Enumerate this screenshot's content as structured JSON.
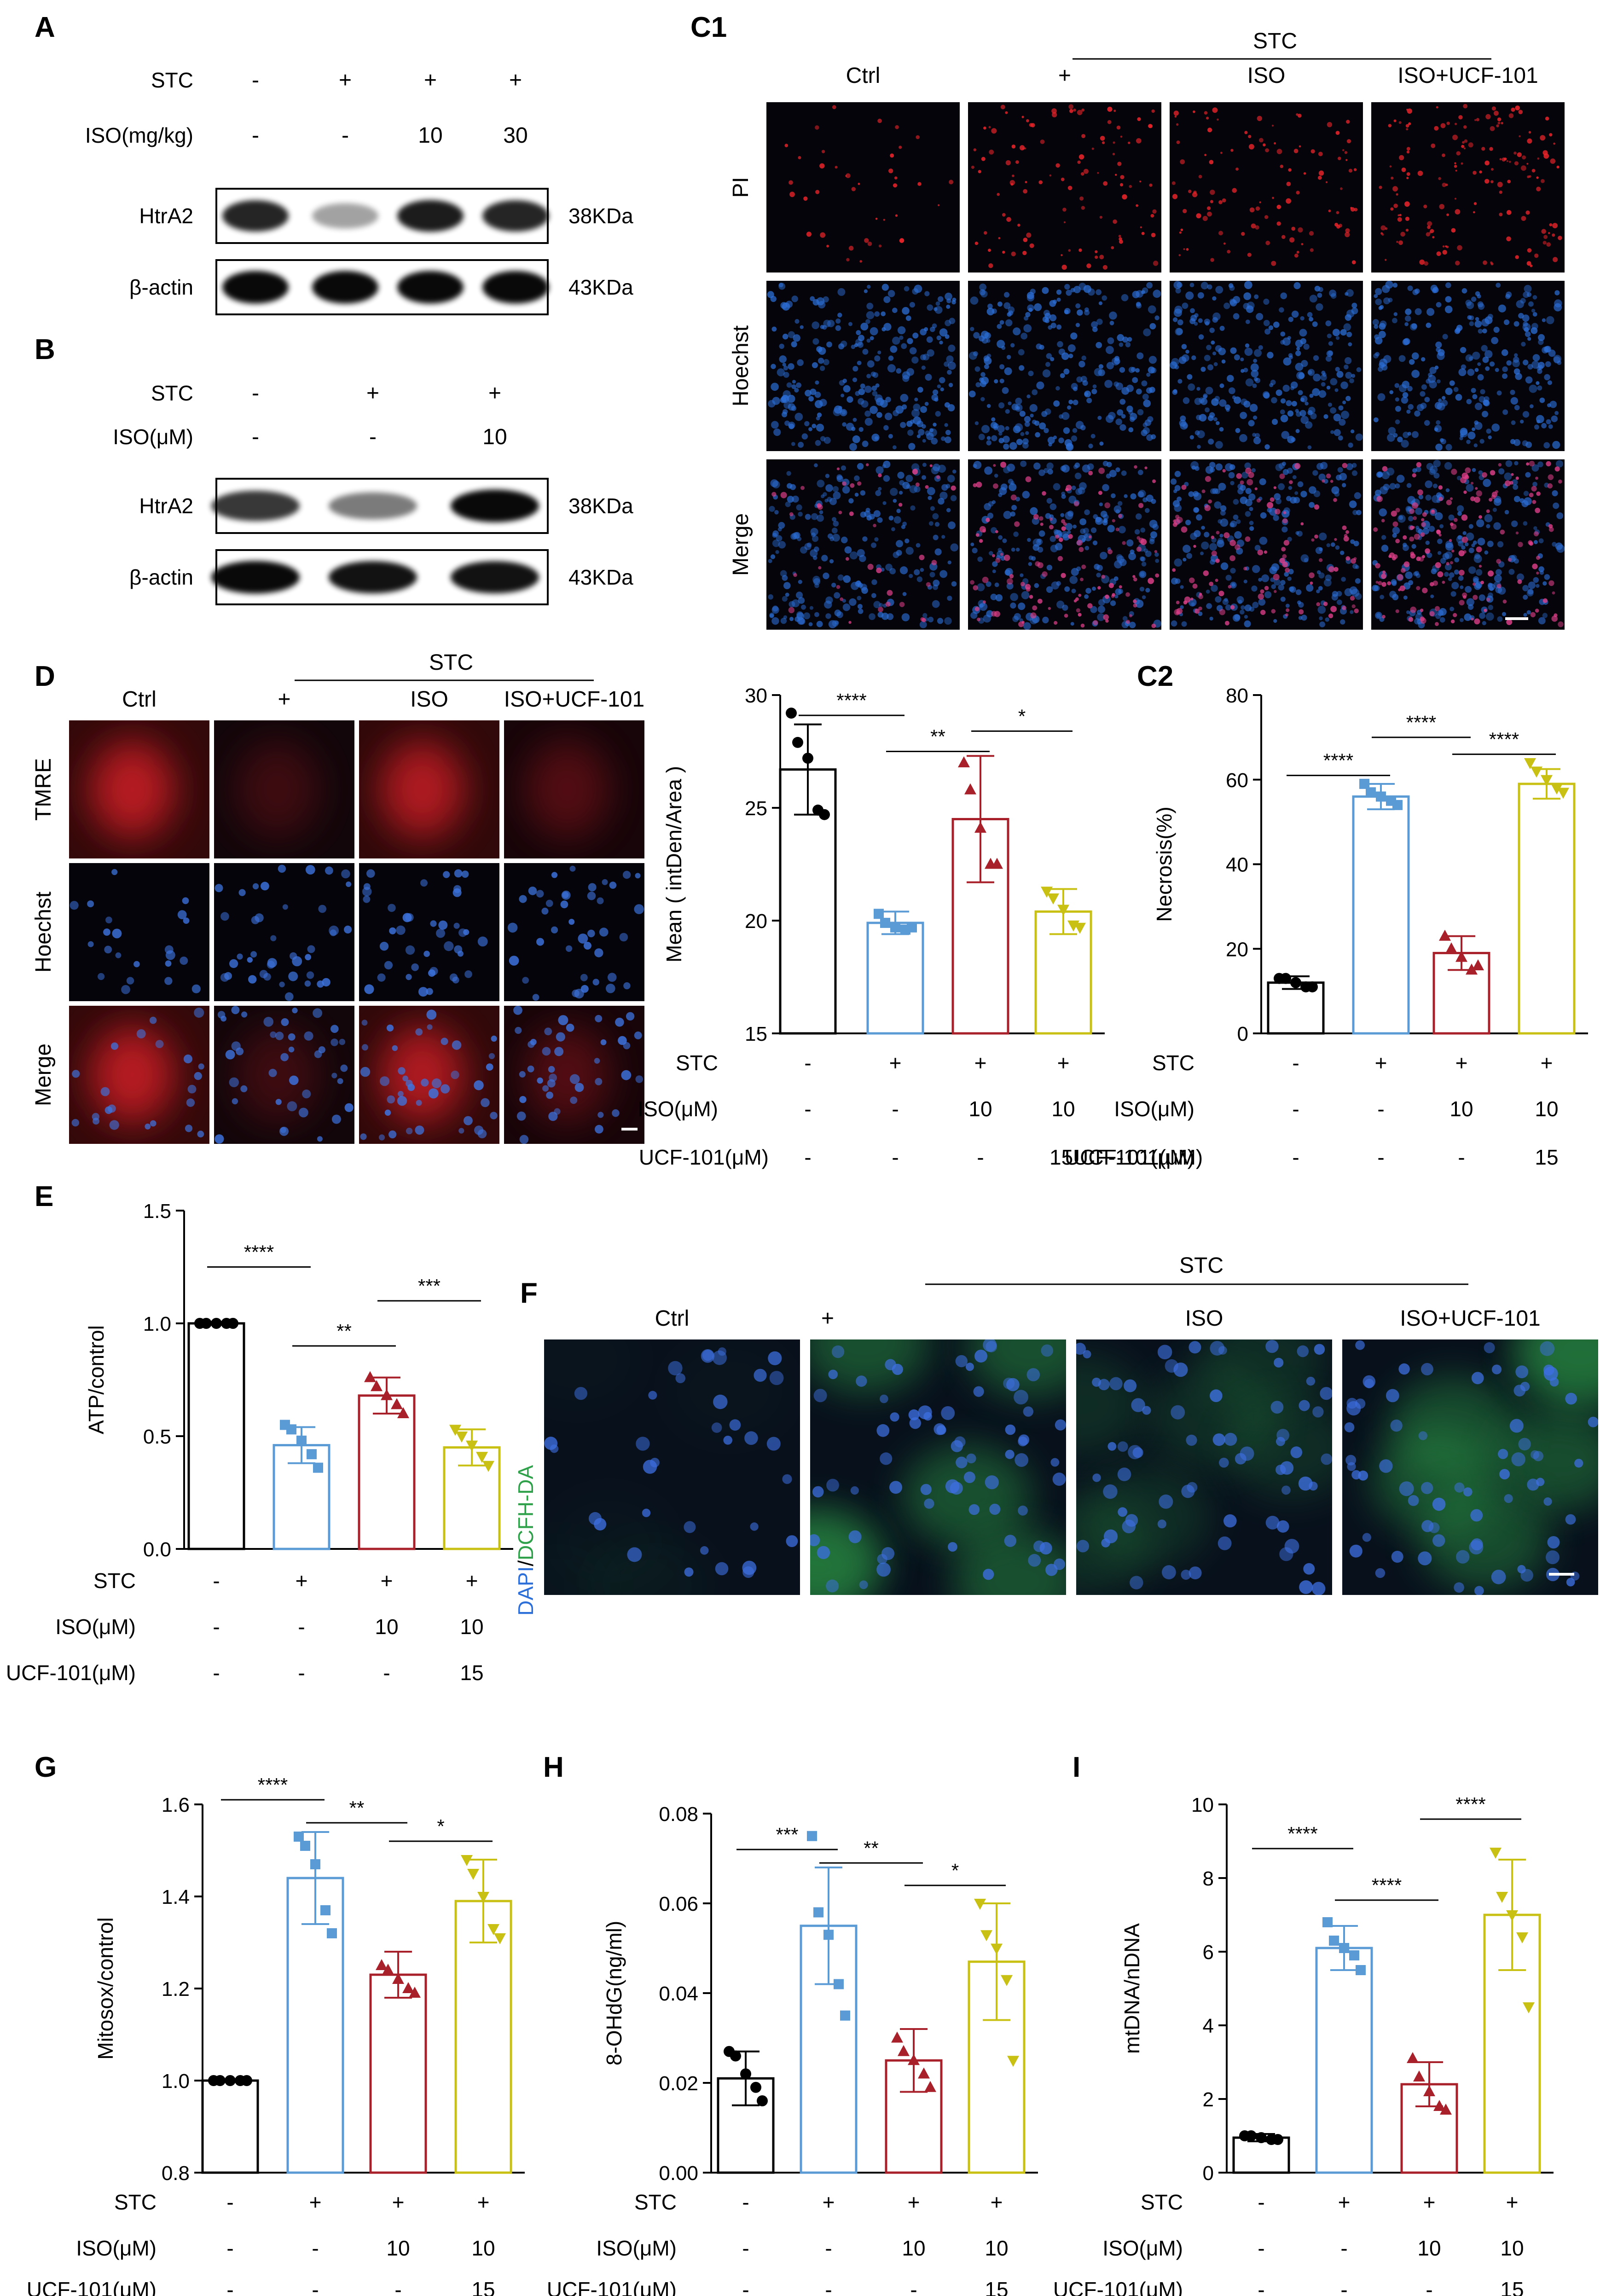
{
  "colors": {
    "ctrl": "#000000",
    "stc": "#5b9bd5",
    "iso": "#a8202a",
    "ucf": "#c8c012",
    "pi": "#e8242a",
    "hoechst": "#2c6fd8",
    "dcf": "#2fa14a"
  },
  "A": {
    "label": "A",
    "rows": [
      {
        "name": "STC",
        "vals": [
          "-",
          "+",
          "+",
          "+"
        ]
      },
      {
        "name": "ISO(mg/kg)",
        "vals": [
          "-",
          "-",
          "10",
          "30"
        ]
      }
    ],
    "blots": [
      {
        "name": "HtrA2",
        "kda": "38KDa",
        "levels": [
          0.8,
          0.15,
          0.85,
          0.8
        ]
      },
      {
        "name": "β-actin",
        "kda": "43KDa",
        "levels": [
          0.95,
          0.95,
          0.95,
          0.95
        ]
      }
    ]
  },
  "B": {
    "label": "B",
    "rows": [
      {
        "name": "STC",
        "vals": [
          "-",
          "+",
          "+"
        ]
      },
      {
        "name": "ISO(μM)",
        "vals": [
          "-",
          "-",
          "10"
        ]
      }
    ],
    "blots": [
      {
        "name": "HtrA2",
        "kda": "38KDa",
        "levels": [
          0.7,
          0.35,
          0.95
        ]
      },
      {
        "name": "β-actin",
        "kda": "43KDa",
        "levels": [
          0.95,
          0.9,
          0.9
        ]
      }
    ]
  },
  "C1": {
    "label": "C1",
    "group": "STC",
    "cols": [
      "Ctrl",
      "+",
      "ISO",
      "ISO+UCF-101"
    ],
    "rows": [
      "PI",
      "Hoechst",
      "Merge"
    ]
  },
  "D": {
    "label": "D",
    "group": "STC",
    "cols": [
      "Ctrl",
      "+",
      "ISO",
      "ISO+UCF-101"
    ],
    "rows": [
      "TMRE",
      "Hoechst",
      "Merge"
    ]
  },
  "F": {
    "label": "F",
    "group": "STC",
    "cols": [
      "Ctrl",
      "+",
      "ISO",
      "ISO+UCF-101"
    ],
    "ylabel_a": "DAPI",
    "ylabel_sep": "/",
    "ylabel_b": "DCFH-DA"
  },
  "conds": {
    "labels": [
      "STC",
      "ISO(μM)",
      "UCF-101(μM)"
    ],
    "vals": [
      [
        "-",
        "+",
        "+",
        "+"
      ],
      [
        "-",
        "-",
        "10",
        "10"
      ],
      [
        "-",
        "-",
        "-",
        "15"
      ]
    ]
  },
  "chart_data": [
    {
      "id": "Dchart",
      "type": "bar",
      "ylabel": "Mean ( intDen/Area )",
      "ylim": [
        15,
        30
      ],
      "yticks": [
        "15",
        "20",
        "25",
        "30"
      ],
      "categories": [
        "Ctrl",
        "STC",
        "STC+ISO",
        "STC+ISO+UCF-101"
      ],
      "values": [
        26.7,
        19.9,
        24.5,
        20.4
      ],
      "errors": [
        2.0,
        0.5,
        2.8,
        1.0
      ],
      "points": [
        [
          29.2,
          27.9,
          27.2,
          24.9,
          24.7
        ],
        [
          20.3,
          19.9,
          19.7,
          19.6,
          19.7
        ],
        [
          27.0,
          25.8,
          24.1,
          22.5,
          22.5
        ],
        [
          21.3,
          21.0,
          20.5,
          19.8,
          19.7
        ]
      ],
      "sig": [
        {
          "a": 0,
          "b": 1,
          "label": "****",
          "y": 29.1
        },
        {
          "a": 1,
          "b": 2,
          "label": "**",
          "y": 27.5
        },
        {
          "a": 2,
          "b": 3,
          "label": "*",
          "y": 28.4
        }
      ]
    },
    {
      "id": "C2",
      "type": "bar",
      "ylabel": "Necrosis(%)",
      "ylim": [
        0,
        80
      ],
      "yticks": [
        "0",
        "20",
        "40",
        "60",
        "80"
      ],
      "categories": [
        "Ctrl",
        "STC",
        "STC+ISO",
        "STC+ISO+UCF-101"
      ],
      "values": [
        12,
        56,
        19,
        59
      ],
      "errors": [
        1.5,
        3.0,
        4.0,
        3.5
      ],
      "points": [
        [
          13,
          13,
          12,
          11,
          11
        ],
        [
          59,
          57,
          56,
          55,
          54
        ],
        [
          23,
          20,
          18,
          15,
          16
        ],
        [
          64,
          62,
          60,
          58,
          57
        ]
      ],
      "sig": [
        {
          "a": 0,
          "b": 1,
          "label": "****",
          "y": 61
        },
        {
          "a": 1,
          "b": 2,
          "label": "****",
          "y": 70
        },
        {
          "a": 2,
          "b": 3,
          "label": "****",
          "y": 66
        }
      ]
    },
    {
      "id": "E",
      "type": "bar",
      "ylabel": "ATP/control",
      "ylim": [
        0,
        1.5
      ],
      "yticks": [
        "0.0",
        "0.5",
        "1.0",
        "1.5"
      ],
      "categories": [
        "Ctrl",
        "STC",
        "STC+ISO",
        "STC+ISO+UCF-101"
      ],
      "values": [
        1.0,
        0.46,
        0.68,
        0.45
      ],
      "errors": [
        0,
        0.08,
        0.08,
        0.08
      ],
      "points": [
        [
          1.0,
          1.0,
          1.0,
          1.0,
          1.0
        ],
        [
          0.55,
          0.53,
          0.48,
          0.42,
          0.36
        ],
        [
          0.76,
          0.72,
          0.68,
          0.64,
          0.6
        ],
        [
          0.53,
          0.5,
          0.46,
          0.41,
          0.37
        ]
      ],
      "sig": [
        {
          "a": 0,
          "b": 1,
          "label": "****",
          "y": 1.25
        },
        {
          "a": 1,
          "b": 2,
          "label": "**",
          "y": 0.9
        },
        {
          "a": 2,
          "b": 3,
          "label": "***",
          "y": 1.1
        }
      ]
    },
    {
      "id": "G",
      "type": "bar",
      "ylabel": "Mitosox/control",
      "ylim": [
        0.8,
        1.6
      ],
      "yticks": [
        "0.8",
        "1.0",
        "1.2",
        "1.4",
        "1.6"
      ],
      "categories": [
        "Ctrl",
        "STC",
        "STC+ISO",
        "STC+ISO+UCF-101"
      ],
      "values": [
        1.0,
        1.44,
        1.23,
        1.39
      ],
      "errors": [
        0,
        0.1,
        0.05,
        0.09
      ],
      "points": [
        [
          1.0,
          1.0,
          1.0,
          1.0,
          1.0
        ],
        [
          1.53,
          1.51,
          1.47,
          1.37,
          1.32
        ],
        [
          1.25,
          1.24,
          1.22,
          1.2,
          1.19
        ],
        [
          1.48,
          1.45,
          1.4,
          1.33,
          1.31
        ]
      ],
      "sig": [
        {
          "a": 0,
          "b": 1,
          "label": "****",
          "y": 1.61
        },
        {
          "a": 1,
          "b": 2,
          "label": "**",
          "y": 1.56
        },
        {
          "a": 2,
          "b": 3,
          "label": "*",
          "y": 1.52
        }
      ]
    },
    {
      "id": "H",
      "type": "bar",
      "ylabel": "8-OHdG(ng/ml)",
      "ylim": [
        0,
        0.08
      ],
      "yticks": [
        "0.00",
        "0.02",
        "0.04",
        "0.06",
        "0.08"
      ],
      "categories": [
        "Ctrl",
        "STC",
        "STC+ISO",
        "STC+ISO+UCF-101"
      ],
      "values": [
        0.021,
        0.055,
        0.025,
        0.047
      ],
      "errors": [
        0.006,
        0.013,
        0.007,
        0.013
      ],
      "points": [
        [
          0.027,
          0.026,
          0.022,
          0.019,
          0.016
        ],
        [
          0.075,
          0.058,
          0.053,
          0.042,
          0.035
        ],
        [
          0.03,
          0.027,
          0.025,
          0.022,
          0.019
        ],
        [
          0.06,
          0.053,
          0.05,
          0.043,
          0.025
        ]
      ],
      "sig": [
        {
          "a": 0,
          "b": 1,
          "label": "***",
          "y": 0.072
        },
        {
          "a": 1,
          "b": 2,
          "label": "**",
          "y": 0.069
        },
        {
          "a": 2,
          "b": 3,
          "label": "*",
          "y": 0.064
        }
      ]
    },
    {
      "id": "I",
      "type": "bar",
      "ylabel": "mtDNA/nDNA",
      "ylim": [
        0,
        10
      ],
      "yticks": [
        "0",
        "2",
        "4",
        "6",
        "8",
        "10"
      ],
      "categories": [
        "Ctrl",
        "STC",
        "STC+ISO",
        "STC+ISO+UCF-101"
      ],
      "values": [
        0.95,
        6.1,
        2.4,
        7.0
      ],
      "errors": [
        0.1,
        0.6,
        0.6,
        1.5
      ],
      "points": [
        [
          1.0,
          1.0,
          0.95,
          0.9,
          0.9
        ],
        [
          6.8,
          6.3,
          6.1,
          5.9,
          5.5
        ],
        [
          3.1,
          2.6,
          2.2,
          1.8,
          1.7
        ],
        [
          8.7,
          7.5,
          7.0,
          6.4,
          4.5
        ]
      ],
      "sig": [
        {
          "a": 0,
          "b": 1,
          "label": "****",
          "y": 8.8
        },
        {
          "a": 1,
          "b": 2,
          "label": "****",
          "y": 7.4
        },
        {
          "a": 2,
          "b": 3,
          "label": "****",
          "y": 9.6
        }
      ]
    }
  ],
  "D_cond_mix": "15UCF-101(μM)",
  "panel_labels": {
    "D_chart": "D",
    "C2": "C2",
    "E": "E",
    "G": "G",
    "H": "H",
    "I": "I"
  }
}
